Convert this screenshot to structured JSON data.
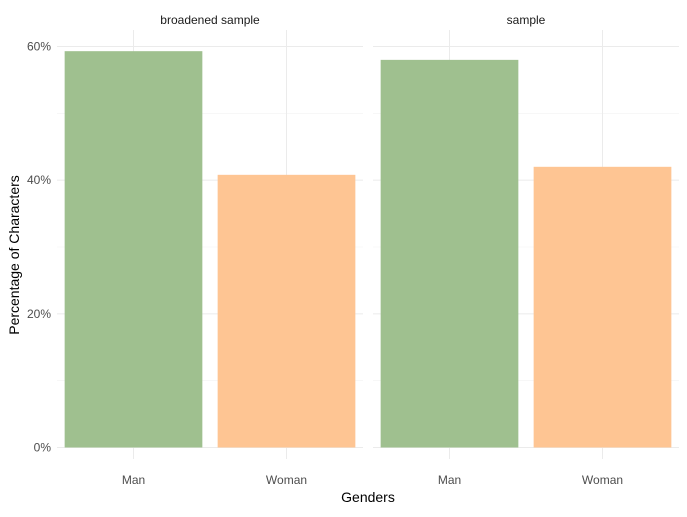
{
  "chart_data": {
    "type": "bar",
    "xlabel": "Genders",
    "ylabel": "Percentage of Characters",
    "ylim": [
      0,
      0.6
    ],
    "yticks": [
      0,
      0.2,
      0.4,
      0.6
    ],
    "ytick_labels": [
      "0%",
      "20%",
      "40%",
      "60%"
    ],
    "grid": true,
    "categories": [
      "Man",
      "Woman"
    ],
    "colors": {
      "Man": "#9fc08f",
      "Woman": "#fec593"
    },
    "facets": [
      {
        "label": "broadened sample",
        "values": [
          0.593,
          0.408
        ]
      },
      {
        "label": "sample",
        "values": [
          0.58,
          0.42
        ]
      }
    ]
  }
}
